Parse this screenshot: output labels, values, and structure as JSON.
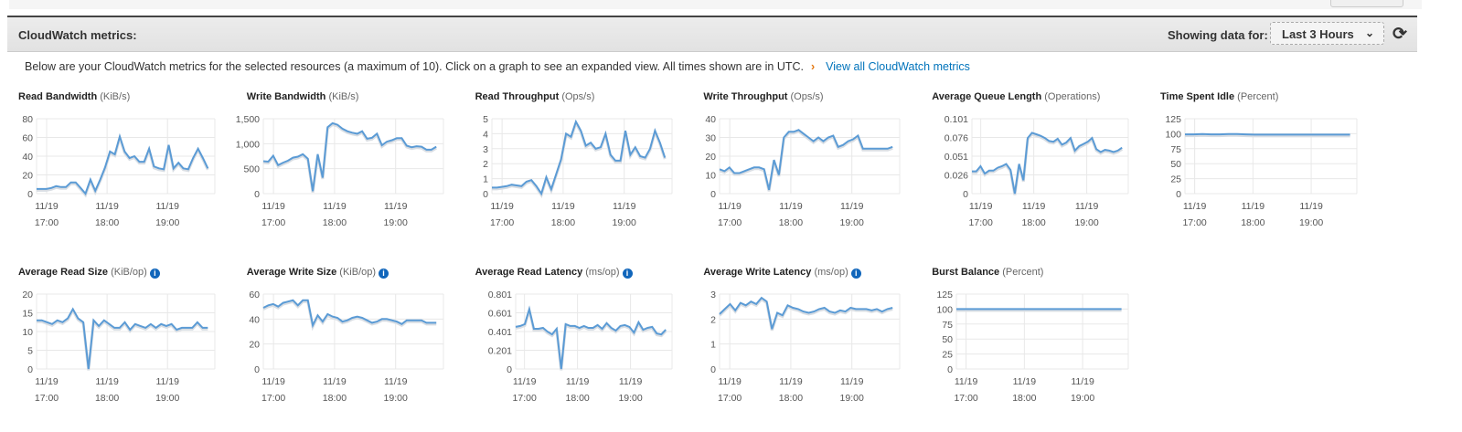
{
  "header": {
    "title": "CloudWatch metrics:",
    "showing_label": "Showing data for:",
    "range_value": "Last 3 Hours",
    "chevron_icon": "chevron-down-icon",
    "refresh_icon": "refresh-icon"
  },
  "description": {
    "text": "Below are your CloudWatch metrics for the selected resources (a maximum of 10). Click on a graph to see an expanded view. All times shown are in UTC.",
    "arrow": "›",
    "link": "View all CloudWatch metrics"
  },
  "colors": {
    "line": "#5b9bd5",
    "link": "#0073bb",
    "info": "#1166bb"
  },
  "chart_data": [
    {
      "type": "line",
      "title": "Read Bandwidth",
      "unit": "(KiB/s)",
      "info": false,
      "yticks": [
        "0",
        "20",
        "40",
        "60",
        "80"
      ],
      "ylim": [
        0,
        80
      ],
      "xticks": [
        [
          "11/19",
          "17:00"
        ],
        [
          "11/19",
          "18:00"
        ],
        [
          "11/19",
          "19:00"
        ]
      ],
      "values": [
        5,
        5,
        5,
        6,
        8,
        7,
        7,
        12,
        12,
        6,
        0,
        15,
        3,
        15,
        28,
        45,
        42,
        61,
        45,
        38,
        40,
        34,
        34,
        48,
        29,
        27,
        26,
        52,
        27,
        33,
        27,
        26,
        38,
        48,
        38,
        27
      ]
    },
    {
      "type": "line",
      "title": "Write Bandwidth",
      "unit": "(KiB/s)",
      "info": false,
      "yticks": [
        "0",
        "500",
        "1,000",
        "1,500"
      ],
      "ylim": [
        0,
        1500
      ],
      "xticks": [
        [
          "11/19",
          "17:00"
        ],
        [
          "11/19",
          "18:00"
        ],
        [
          "11/19",
          "19:00"
        ]
      ],
      "values": [
        650,
        640,
        760,
        570,
        620,
        660,
        720,
        740,
        790,
        700,
        50,
        790,
        320,
        1330,
        1410,
        1380,
        1300,
        1250,
        1220,
        1200,
        1250,
        1100,
        1120,
        1200,
        970,
        1040,
        1070,
        1110,
        1110,
        960,
        930,
        950,
        940,
        880,
        880,
        940
      ]
    },
    {
      "type": "line",
      "title": "Read Throughput",
      "unit": "(Ops/s)",
      "info": false,
      "yticks": [
        "0",
        "1",
        "2",
        "3",
        "4",
        "5"
      ],
      "ylim": [
        0,
        5
      ],
      "xticks": [
        [
          "11/19",
          "17:00"
        ],
        [
          "11/19",
          "18:00"
        ],
        [
          "11/19",
          "19:00"
        ]
      ],
      "values": [
        0.4,
        0.4,
        0.45,
        0.5,
        0.6,
        0.55,
        0.5,
        0.8,
        0.9,
        0.5,
        0,
        1.1,
        0.3,
        1.3,
        2.3,
        4,
        3.8,
        4.8,
        4.2,
        3.2,
        3.4,
        3,
        3.1,
        4,
        2.6,
        2.2,
        2.2,
        4.2,
        2.6,
        3.1,
        2.5,
        2.4,
        3,
        4.2,
        3.4,
        2.4
      ]
    },
    {
      "type": "line",
      "title": "Write Throughput",
      "unit": "(Ops/s)",
      "info": false,
      "yticks": [
        "0",
        "10",
        "20",
        "30",
        "40"
      ],
      "ylim": [
        0,
        40
      ],
      "xticks": [
        [
          "11/19",
          "17:00"
        ],
        [
          "11/19",
          "18:00"
        ],
        [
          "11/19",
          "19:00"
        ]
      ],
      "values": [
        13,
        12,
        14,
        11,
        11,
        12,
        13,
        14,
        14,
        13,
        2,
        18,
        10,
        30,
        33,
        33,
        34,
        32,
        30,
        28,
        30,
        28,
        30,
        31,
        25,
        26,
        28,
        29,
        31,
        24,
        24,
        24,
        24,
        24,
        24,
        25
      ]
    },
    {
      "type": "line",
      "title": "Average Queue Length",
      "unit": "(Operations)",
      "info": false,
      "yticks": [
        "0",
        "0.026",
        "0.051",
        "0.076",
        "0.101"
      ],
      "ylim": [
        0,
        0.101
      ],
      "xticks": [
        [
          "11/19",
          "17:00"
        ],
        [
          "11/19",
          "18:00"
        ],
        [
          "11/19",
          "19:00"
        ]
      ],
      "values": [
        0.03,
        0.03,
        0.037,
        0.027,
        0.031,
        0.031,
        0.035,
        0.037,
        0.04,
        0.032,
        0,
        0.04,
        0.018,
        0.075,
        0.082,
        0.08,
        0.078,
        0.075,
        0.071,
        0.07,
        0.074,
        0.066,
        0.069,
        0.075,
        0.058,
        0.064,
        0.067,
        0.07,
        0.075,
        0.06,
        0.056,
        0.059,
        0.058,
        0.056,
        0.058,
        0.062
      ]
    },
    {
      "type": "line",
      "title": "Time Spent Idle",
      "unit": "(Percent)",
      "info": false,
      "yticks": [
        "0",
        "25",
        "50",
        "75",
        "100",
        "125"
      ],
      "ylim": [
        0,
        125
      ],
      "xticks": [
        [
          "11/19",
          "17:00"
        ],
        [
          "11/19",
          "18:00"
        ],
        [
          "11/19",
          "19:00"
        ]
      ],
      "values": [
        99,
        99,
        99.5,
        99,
        99,
        99.5,
        99.5,
        99,
        98.5,
        98.5,
        98.5,
        98.5,
        98.5,
        98.5,
        98.5,
        98.5,
        98.5,
        98.5,
        98.5,
        98.5
      ]
    },
    {
      "type": "line",
      "title": "Average Read Size",
      "unit": "(KiB/op)",
      "info": true,
      "yticks": [
        "0",
        "5",
        "10",
        "15",
        "20"
      ],
      "ylim": [
        0,
        20
      ],
      "xticks": [
        [
          "11/19",
          "17:00"
        ],
        [
          "11/19",
          "18:00"
        ],
        [
          "11/19",
          "19:00"
        ]
      ],
      "values": [
        13,
        13,
        12.5,
        12,
        13,
        12.5,
        13.5,
        16,
        13.5,
        12.5,
        0,
        13,
        11.5,
        13,
        12,
        11,
        11,
        12.5,
        10.5,
        12,
        11.5,
        11,
        12,
        11,
        12,
        11.5,
        12,
        10.5,
        11,
        11,
        11,
        12.5,
        11,
        11
      ]
    },
    {
      "type": "line",
      "title": "Average Write Size",
      "unit": "(KiB/op)",
      "info": true,
      "yticks": [
        "0",
        "20",
        "40",
        "60"
      ],
      "ylim": [
        0,
        60
      ],
      "xticks": [
        [
          "11/19",
          "17:00"
        ],
        [
          "11/19",
          "18:00"
        ],
        [
          "11/19",
          "19:00"
        ]
      ],
      "values": [
        49,
        51,
        52,
        50,
        53,
        54,
        55,
        51,
        55,
        55,
        35,
        43,
        38,
        44,
        42,
        41,
        38,
        39,
        41,
        42,
        41,
        39,
        37,
        38,
        40,
        40,
        39,
        38,
        36,
        39,
        39,
        39,
        39,
        37,
        37,
        37
      ]
    },
    {
      "type": "line",
      "title": "Average Read Latency",
      "unit": "(ms/op)",
      "info": true,
      "yticks": [
        "0",
        "0.201",
        "0.401",
        "0.601",
        "0.801"
      ],
      "ylim": [
        0,
        0.801
      ],
      "xticks": [
        [
          "11/19",
          "17:00"
        ],
        [
          "11/19",
          "18:00"
        ],
        [
          "11/19",
          "19:00"
        ]
      ],
      "values": [
        0.45,
        0.46,
        0.48,
        0.64,
        0.43,
        0.43,
        0.44,
        0.4,
        0.37,
        0.43,
        0,
        0.48,
        0.46,
        0.46,
        0.44,
        0.46,
        0.44,
        0.44,
        0.47,
        0.43,
        0.49,
        0.44,
        0.41,
        0.46,
        0.47,
        0.45,
        0.39,
        0.5,
        0.42,
        0.44,
        0.45,
        0.38,
        0.37,
        0.42
      ]
    },
    {
      "type": "line",
      "title": "Average Write Latency",
      "unit": "(ms/op)",
      "info": true,
      "yticks": [
        "0",
        "1",
        "2",
        "3"
      ],
      "ylim": [
        0,
        3
      ],
      "xticks": [
        [
          "11/19",
          "17:00"
        ],
        [
          "11/19",
          "18:00"
        ],
        [
          "11/19",
          "19:00"
        ]
      ],
      "values": [
        2.2,
        2.4,
        2.6,
        2.35,
        2.65,
        2.55,
        2.7,
        2.6,
        2.85,
        2.7,
        1.6,
        2.25,
        2.15,
        2.55,
        2.45,
        2.4,
        2.3,
        2.25,
        2.3,
        2.4,
        2.45,
        2.3,
        2.25,
        2.35,
        2.3,
        2.45,
        2.4,
        2.4,
        2.4,
        2.35,
        2.4,
        2.3,
        2.4,
        2.45
      ]
    },
    {
      "type": "line",
      "title": "Burst Balance",
      "unit": "(Percent)",
      "info": false,
      "yticks": [
        "0",
        "25",
        "50",
        "75",
        "100",
        "125"
      ],
      "ylim": [
        0,
        125
      ],
      "xticks": [
        [
          "11/19",
          "17:00"
        ],
        [
          "11/19",
          "18:00"
        ],
        [
          "11/19",
          "19:00"
        ]
      ],
      "values": [
        100,
        100,
        100,
        100,
        100,
        100,
        100,
        100,
        100,
        100
      ]
    }
  ]
}
